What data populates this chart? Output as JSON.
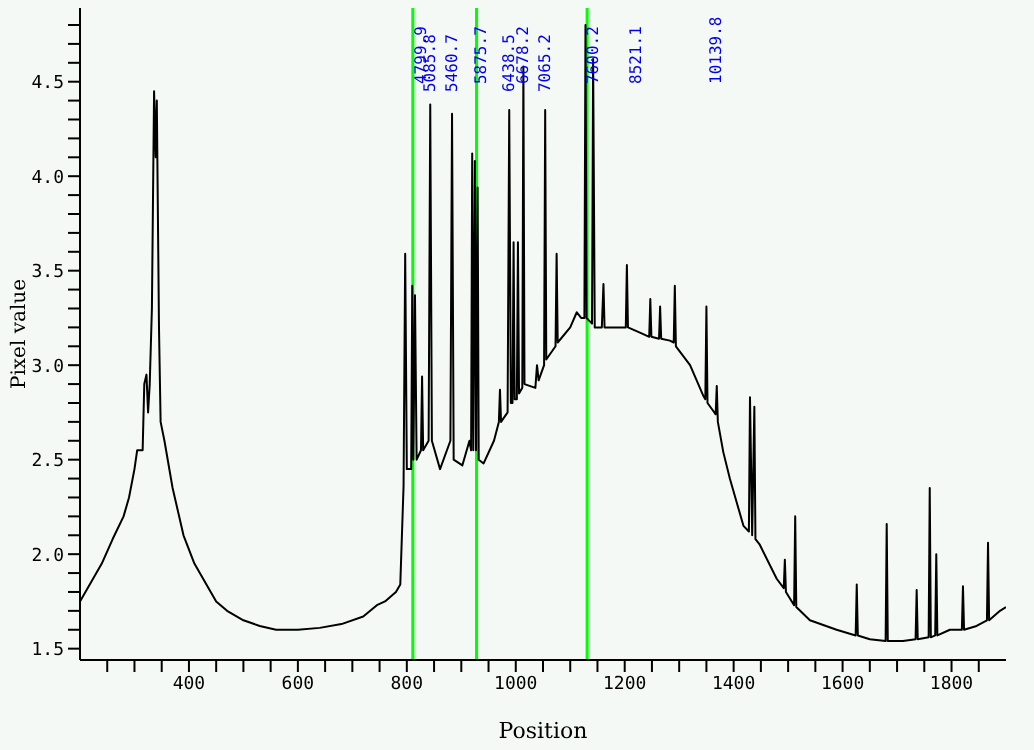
{
  "chart_data": {
    "type": "line",
    "xlabel": "Position",
    "ylabel": "Pixel value",
    "x": [
      200,
      220,
      240,
      260,
      280,
      290,
      300,
      305,
      315,
      318,
      322,
      325,
      328,
      332,
      336,
      339,
      341,
      345,
      348,
      355,
      370,
      390,
      410,
      430,
      450,
      470,
      500,
      530,
      560,
      600,
      640,
      680,
      720,
      745,
      760,
      780,
      788,
      794,
      797,
      800,
      808,
      810,
      812,
      815,
      818,
      826,
      828,
      830,
      840,
      843,
      846,
      861,
      880,
      883,
      886,
      902,
      915,
      918,
      920,
      922,
      925,
      927,
      930,
      932,
      941,
      960,
      969,
      971,
      973,
      985,
      988,
      991,
      994,
      996,
      998,
      1002,
      1004,
      1006,
      1012,
      1014,
      1016,
      1036,
      1039,
      1042,
      1052,
      1054,
      1056,
      1073,
      1075,
      1077,
      1100,
      1112,
      1120,
      1126,
      1128,
      1130,
      1140,
      1142,
      1145,
      1158,
      1161,
      1163,
      1185,
      1202,
      1204,
      1206,
      1230,
      1245,
      1247,
      1249,
      1263,
      1265,
      1267,
      1283,
      1290,
      1292,
      1294,
      1320,
      1344,
      1348,
      1350,
      1352,
      1362,
      1367,
      1369,
      1371,
      1381,
      1393,
      1418,
      1428,
      1430,
      1434,
      1438,
      1440,
      1448,
      1479,
      1492,
      1494,
      1496,
      1511,
      1513,
      1515,
      1540,
      1589,
      1624,
      1626,
      1628,
      1650,
      1679,
      1681,
      1683,
      1711,
      1734,
      1736,
      1738,
      1758,
      1760,
      1762,
      1770,
      1772,
      1774,
      1797,
      1819,
      1821,
      1823,
      1846,
      1865,
      1867,
      1869,
      1889,
      1900
    ],
    "series": [
      {
        "color": "#000000",
        "values": [
          1.75,
          1.85,
          1.95,
          2.08,
          2.2,
          2.3,
          2.45,
          2.55,
          2.55,
          2.9,
          2.95,
          2.75,
          2.9,
          3.3,
          4.45,
          4.1,
          4.4,
          3.2,
          2.7,
          2.6,
          2.35,
          2.1,
          1.95,
          1.85,
          1.75,
          1.7,
          1.65,
          1.62,
          1.6,
          1.6,
          1.61,
          1.63,
          1.67,
          1.73,
          1.75,
          1.8,
          1.84,
          2.36,
          3.59,
          2.45,
          2.45,
          3.42,
          2.5,
          3.37,
          2.5,
          2.55,
          2.94,
          2.55,
          2.6,
          4.38,
          2.6,
          2.45,
          2.6,
          4.33,
          2.5,
          2.47,
          2.6,
          2.55,
          4.12,
          2.55,
          4.08,
          2.55,
          3.94,
          2.5,
          2.48,
          2.6,
          2.7,
          2.87,
          2.7,
          2.75,
          4.35,
          2.8,
          2.8,
          3.65,
          2.82,
          2.82,
          3.65,
          2.85,
          2.88,
          4.58,
          2.9,
          2.88,
          3.0,
          2.92,
          3.0,
          4.35,
          3.03,
          3.1,
          3.59,
          3.12,
          3.2,
          3.28,
          3.25,
          3.25,
          4.8,
          3.25,
          3.22,
          4.62,
          3.2,
          3.2,
          3.43,
          3.2,
          3.2,
          3.2,
          3.53,
          3.2,
          3.17,
          3.15,
          3.35,
          3.15,
          3.14,
          3.31,
          3.14,
          3.13,
          3.12,
          3.42,
          3.1,
          3.0,
          2.84,
          2.82,
          3.31,
          2.8,
          2.76,
          2.74,
          2.89,
          2.7,
          2.54,
          2.4,
          2.15,
          2.12,
          2.83,
          2.1,
          2.78,
          2.08,
          2.05,
          1.87,
          1.82,
          1.97,
          1.8,
          1.73,
          2.2,
          1.72,
          1.65,
          1.6,
          1.57,
          1.84,
          1.57,
          1.55,
          1.54,
          2.16,
          1.54,
          1.54,
          1.55,
          1.81,
          1.55,
          1.56,
          2.35,
          1.56,
          1.57,
          2.0,
          1.57,
          1.6,
          1.6,
          1.83,
          1.6,
          1.62,
          1.65,
          2.06,
          1.65,
          1.7,
          1.72
        ]
      }
    ],
    "xlim": [
      200,
      1900
    ],
    "ylim": [
      1.44,
      4.89
    ],
    "xticks": [
      {
        "value": 250,
        "label": null
      },
      {
        "value": 300,
        "label": null
      },
      {
        "value": 350,
        "label": null
      },
      400,
      {
        "value": 450,
        "label": null
      },
      {
        "value": 500,
        "label": null
      },
      {
        "value": 550,
        "label": null
      },
      600,
      {
        "value": 650,
        "label": null
      },
      {
        "value": 700,
        "label": null
      },
      {
        "value": 750,
        "label": null
      },
      800,
      {
        "value": 850,
        "label": null
      },
      {
        "value": 900,
        "label": null
      },
      {
        "value": 950,
        "label": null
      },
      1000,
      {
        "value": 1050,
        "label": null
      },
      {
        "value": 1100,
        "label": null
      },
      {
        "value": 1150,
        "label": null
      },
      1200,
      {
        "value": 1250,
        "label": null
      },
      {
        "value": 1300,
        "label": null
      },
      {
        "value": 1350,
        "label": null
      },
      1400,
      {
        "value": 1450,
        "label": null
      },
      {
        "value": 1500,
        "label": null
      },
      {
        "value": 1550,
        "label": null
      },
      1600,
      {
        "value": 1650,
        "label": null
      },
      {
        "value": 1700,
        "label": null
      },
      {
        "value": 1750,
        "label": null
      },
      1800,
      {
        "value": 1850,
        "label": null
      }
    ],
    "yticks": [
      1.5,
      {
        "value": 1.6,
        "label": null
      },
      {
        "value": 1.7,
        "label": null
      },
      {
        "value": 1.8,
        "label": null
      },
      {
        "value": 1.9,
        "label": null
      },
      {
        "value": 2,
        "label": "2.0"
      },
      {
        "value": 2.1,
        "label": null
      },
      {
        "value": 2.2,
        "label": null
      },
      {
        "value": 2.3,
        "label": null
      },
      {
        "value": 2.4,
        "label": null
      },
      2.5,
      {
        "value": 2.6,
        "label": null
      },
      {
        "value": 2.7,
        "label": null
      },
      {
        "value": 2.8,
        "label": null
      },
      {
        "value": 2.9,
        "label": null
      },
      {
        "value": 3,
        "label": "3.0"
      },
      {
        "value": 3.1,
        "label": null
      },
      {
        "value": 3.2,
        "label": null
      },
      {
        "value": 3.3,
        "label": null
      },
      {
        "value": 3.4,
        "label": null
      },
      3.5,
      {
        "value": 3.6,
        "label": null
      },
      {
        "value": 3.7,
        "label": null
      },
      {
        "value": 3.8,
        "label": null
      },
      {
        "value": 3.9,
        "label": null
      },
      {
        "value": 4,
        "label": "4.0"
      },
      {
        "value": 4.1,
        "label": null
      },
      {
        "value": 4.2,
        "label": null
      },
      {
        "value": 4.3,
        "label": null
      },
      {
        "value": 4.4,
        "label": null
      },
      4.5,
      {
        "value": 4.6,
        "label": null
      },
      {
        "value": 4.7,
        "label": null
      },
      {
        "value": 4.8,
        "label": null
      }
    ],
    "marker": "none",
    "line_style": "solid",
    "ref_lines": [
      {
        "axis": "x",
        "value": 811,
        "color": "#00ff00"
      },
      {
        "axis": "x",
        "value": 928,
        "color": "#00ff00"
      },
      {
        "axis": "x",
        "value": 1131,
        "color": "#00ff00"
      }
    ],
    "annotations": [
      {
        "text": "4799.9",
        "x": 826,
        "y": 4.65
      },
      {
        "text": "5085.8",
        "x": 843,
        "y": 4.38
      },
      {
        "text": "5460.7",
        "x": 883,
        "y": 4.33
      },
      {
        "text": "5875.7",
        "x": 936,
        "y": 4.65
      },
      {
        "text": "6438.5",
        "x": 988,
        "y": 4.35
      },
      {
        "text": "6678.2",
        "x": 1014,
        "y": 4.58
      },
      {
        "text": "7065.2",
        "x": 1054,
        "y": 4.35
      },
      {
        "text": "7600.2",
        "x": 1142,
        "y": 4.62
      },
      "8521.1",
      "10139.8"
    ]
  }
}
